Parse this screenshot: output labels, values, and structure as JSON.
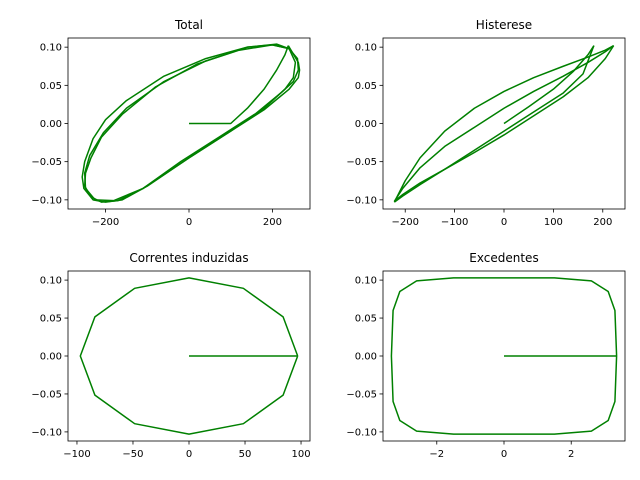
{
  "chart_data": [
    {
      "type": "line",
      "title": "Total",
      "color": "#008000",
      "xlim": [
        -290,
        290
      ],
      "ylim": [
        -0.112,
        0.112
      ],
      "xticks": [
        -200,
        0,
        200
      ],
      "xtick_labels": [
        "−200",
        "0",
        "200"
      ],
      "yticks": [
        -0.1,
        -0.05,
        0.0,
        0.05,
        0.1
      ],
      "ytick_labels": [
        "−0.10",
        "−0.05",
        "0.00",
        "0.05",
        "0.10"
      ],
      "series": [
        {
          "x": [
            0,
            100,
            140,
            180,
            210,
            230,
            238
          ],
          "y": [
            0,
            0,
            0.02,
            0.045,
            0.07,
            0.09,
            0.102
          ]
        },
        {
          "x": [
            238,
            262,
            265,
            262,
            240,
            180,
            100,
            0,
            -100,
            -160,
            -200,
            -230,
            -252,
            -256,
            -250,
            -230,
            -200,
            -150,
            -60,
            40,
            140,
            200,
            240
          ],
          "y": [
            0.102,
            0.08,
            0.07,
            0.06,
            0.045,
            0.018,
            -0.01,
            -0.045,
            -0.082,
            -0.1,
            -0.103,
            -0.1,
            -0.085,
            -0.07,
            -0.05,
            -0.02,
            0.005,
            0.03,
            0.062,
            0.085,
            0.1,
            0.103,
            0.098
          ]
        },
        {
          "x": [
            240,
            260,
            262,
            250,
            220,
            160,
            80,
            -20,
            -110,
            -170,
            -210,
            -235,
            -250,
            -248,
            -235,
            -210,
            -160,
            -80,
            20,
            120,
            200,
            240
          ],
          "y": [
            0.098,
            0.085,
            0.07,
            0.055,
            0.04,
            0.013,
            -0.015,
            -0.05,
            -0.085,
            -0.101,
            -0.103,
            -0.096,
            -0.082,
            -0.065,
            -0.045,
            -0.018,
            0.012,
            0.048,
            0.078,
            0.096,
            0.103,
            0.098
          ]
        },
        {
          "x": [
            240,
            255,
            250,
            230,
            180,
            100,
            0,
            -110,
            -180,
            -225,
            -248,
            -250,
            -238,
            -205,
            -150,
            -60,
            40,
            140,
            210,
            240
          ],
          "y": [
            0.098,
            0.08,
            0.06,
            0.045,
            0.02,
            -0.01,
            -0.045,
            -0.085,
            -0.101,
            -0.1,
            -0.085,
            -0.065,
            -0.042,
            -0.012,
            0.02,
            0.055,
            0.082,
            0.1,
            0.104,
            0.098
          ]
        }
      ]
    },
    {
      "type": "line",
      "title": "Histerese",
      "color": "#008000",
      "xlim": [
        -245,
        245
      ],
      "ylim": [
        -0.112,
        0.112
      ],
      "xticks": [
        -200,
        -100,
        0,
        100,
        200
      ],
      "xtick_labels": [
        "−200",
        "−100",
        "0",
        "100",
        "200"
      ],
      "yticks": [
        -0.1,
        -0.05,
        0.0,
        0.05,
        0.1
      ],
      "ytick_labels": [
        "−0.10",
        "−0.05",
        "0.00",
        "0.05",
        "0.10"
      ],
      "series": [
        {
          "x": [
            0,
            50,
            100,
            140,
            170,
            182
          ],
          "y": [
            0,
            0.022,
            0.045,
            0.068,
            0.09,
            0.102
          ]
        },
        {
          "x": [
            182,
            160,
            120,
            60,
            0,
            -60,
            -120,
            -170,
            -205,
            -222
          ],
          "y": [
            0.102,
            0.065,
            0.04,
            0.015,
            -0.01,
            -0.035,
            -0.06,
            -0.08,
            -0.095,
            -0.103
          ]
        },
        {
          "x": [
            -222,
            -200,
            -170,
            -120,
            -60,
            0,
            60,
            120,
            170,
            205,
            222
          ],
          "y": [
            -0.103,
            -0.075,
            -0.045,
            -0.01,
            0.02,
            0.042,
            0.06,
            0.075,
            0.087,
            0.096,
            0.102
          ]
        },
        {
          "x": [
            222,
            205,
            170,
            120,
            60,
            0,
            -60,
            -120,
            -170,
            -205,
            -222
          ],
          "y": [
            0.102,
            0.085,
            0.06,
            0.035,
            0.01,
            -0.015,
            -0.038,
            -0.06,
            -0.078,
            -0.093,
            -0.102
          ]
        },
        {
          "x": [
            -222,
            -205,
            -170,
            -120,
            -60,
            0,
            60,
            120,
            170,
            205,
            222
          ],
          "y": [
            -0.102,
            -0.085,
            -0.058,
            -0.03,
            -0.005,
            0.02,
            0.042,
            0.062,
            0.08,
            0.094,
            0.102
          ]
        }
      ]
    },
    {
      "type": "line",
      "title": "Correntes induzidas",
      "color": "#008000",
      "xlim": [
        -108,
        108
      ],
      "ylim": [
        -0.112,
        0.112
      ],
      "xticks": [
        -100,
        -50,
        0,
        50,
        100
      ],
      "xtick_labels": [
        "−100",
        "−50",
        "0",
        "50",
        "100"
      ],
      "yticks": [
        -0.1,
        -0.05,
        0.0,
        0.05,
        0.1
      ],
      "ytick_labels": [
        "−0.10",
        "−0.05",
        "0.00",
        "0.05",
        "0.10"
      ],
      "series": [
        {
          "x": [
            0,
            97
          ],
          "y": [
            0,
            0
          ]
        },
        {
          "x": [
            97,
            84,
            48.5,
            0,
            -48.5,
            -84,
            -97,
            -84,
            -48.5,
            0,
            48.5,
            84,
            97
          ],
          "y": [
            0,
            0.0515,
            0.0892,
            0.103,
            0.0892,
            0.0515,
            0,
            -0.0515,
            -0.0892,
            -0.103,
            -0.0892,
            -0.0515,
            0
          ]
        }
      ]
    },
    {
      "type": "line",
      "title": "Excedentes",
      "color": "#008000",
      "xlim": [
        -3.6,
        3.6
      ],
      "ylim": [
        -0.112,
        0.112
      ],
      "xticks": [
        -2,
        0,
        2
      ],
      "xtick_labels": [
        "−2",
        "0",
        "2"
      ],
      "yticks": [
        -0.1,
        -0.05,
        0.0,
        0.05,
        0.1
      ],
      "ytick_labels": [
        "−0.10",
        "−0.05",
        "0.00",
        "0.05",
        "0.10"
      ],
      "series": [
        {
          "x": [
            0,
            3.35
          ],
          "y": [
            0,
            0
          ]
        },
        {
          "x": [
            3.35,
            3.3,
            3.1,
            2.6,
            1.5,
            0,
            -1.5,
            -2.6,
            -3.1,
            -3.3,
            -3.35,
            -3.3,
            -3.1,
            -2.6,
            -1.5,
            0,
            1.5,
            2.6,
            3.1,
            3.3,
            3.35
          ],
          "y": [
            0,
            0.06,
            0.085,
            0.099,
            0.103,
            0.103,
            0.103,
            0.099,
            0.085,
            0.06,
            0,
            -0.06,
            -0.085,
            -0.099,
            -0.103,
            -0.103,
            -0.103,
            -0.099,
            -0.085,
            -0.06,
            0
          ]
        }
      ]
    }
  ]
}
